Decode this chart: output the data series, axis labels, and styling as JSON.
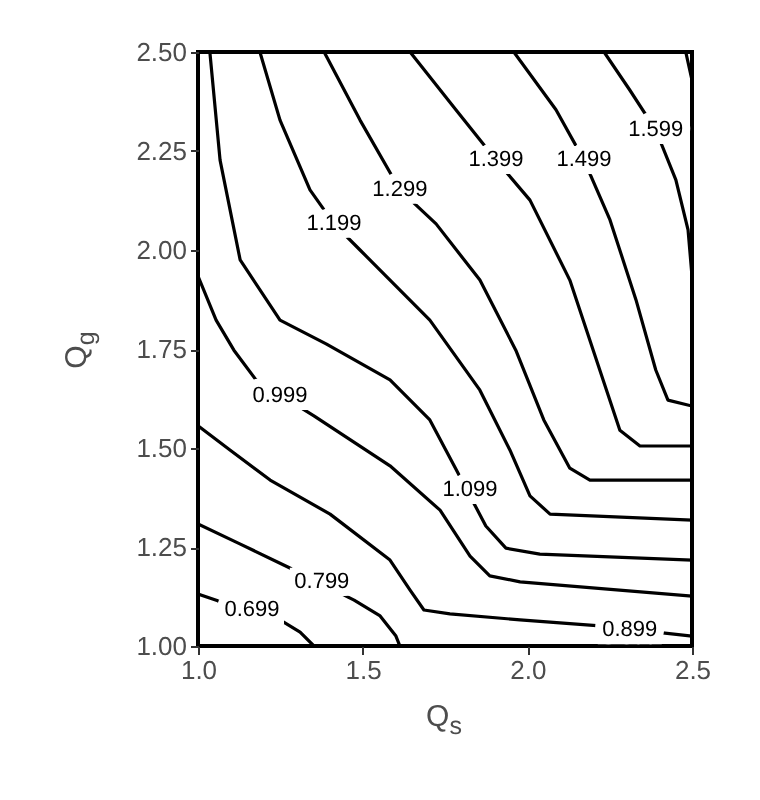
{
  "chart_data": {
    "type": "line",
    "xlabel": "Q$_{s}$",
    "ylabel": "Q$_{g}$",
    "xlim": [
      1,
      2.5
    ],
    "ylim": [
      1,
      2.5
    ],
    "xticks": [
      {
        "value": 1,
        "label": "1.0"
      },
      {
        "value": 1.5,
        "label": "1.5"
      },
      {
        "value": 2,
        "label": "2.0"
      },
      {
        "value": 2.5,
        "label": "2.5"
      }
    ],
    "yticks": [
      {
        "value": 1,
        "label": "1.00"
      },
      {
        "value": 1.25,
        "label": "1.25"
      },
      {
        "value": 1.5,
        "label": "1.50"
      },
      {
        "value": 1.75,
        "label": "1.75"
      },
      {
        "value": 2,
        "label": "2.00"
      },
      {
        "value": 2.25,
        "label": "2.25"
      },
      {
        "value": 2.5,
        "label": "2.50"
      }
    ],
    "grid": false,
    "line_style": "solid",
    "marker": "none",
    "series": [
      {
        "color": "#000000",
        "x": [
          1.0,
          1.06,
          1.249,
          1.31,
          1.352
        ],
        "values": [
          1.131,
          1.114,
          1.066,
          1.035,
          1.0
        ]
      },
      {
        "color": "#000000",
        "x": [
          1.0,
          1.127,
          1.279,
          1.474,
          1.553,
          1.601,
          1.613
        ],
        "values": [
          1.308,
          1.258,
          1.197,
          1.116,
          1.076,
          1.025,
          1.0
        ]
      },
      {
        "color": "#000000",
        "x": [
          1.0,
          1.097,
          1.219,
          1.401,
          1.583,
          1.644,
          1.686,
          1.765,
          1.978,
          2.22,
          2.5
        ],
        "values": [
          1.556,
          1.495,
          1.419,
          1.333,
          1.217,
          1.141,
          1.091,
          1.081,
          1.066,
          1.051,
          1.025
        ]
      },
      {
        "color": "#000000",
        "x": [
          1.0,
          1.055,
          1.109,
          1.176,
          1.352,
          1.583,
          1.735,
          1.826,
          1.886,
          1.978,
          2.5
        ],
        "values": [
          1.934,
          1.823,
          1.747,
          1.672,
          1.581,
          1.455,
          1.343,
          1.227,
          1.177,
          1.162,
          1.126
        ]
      },
      {
        "color": "#000000",
        "x": [
          1.036,
          1.067,
          1.128,
          1.249,
          1.389,
          1.583,
          1.704,
          1.781,
          1.874,
          1.935,
          2.038,
          2.5
        ],
        "values": [
          2.5,
          2.227,
          1.975,
          1.823,
          1.763,
          1.672,
          1.571,
          1.45,
          1.303,
          1.247,
          1.232,
          1.217
        ]
      },
      {
        "color": "#000000",
        "x": [
          1.188,
          1.249,
          1.34,
          1.413,
          1.492,
          1.704,
          1.856,
          1.947,
          2.008,
          2.069,
          2.5
        ],
        "values": [
          2.5,
          2.328,
          2.152,
          2.066,
          2.0,
          1.823,
          1.646,
          1.495,
          1.379,
          1.333,
          1.318
        ]
      },
      {
        "color": "#000000",
        "x": [
          1.383,
          1.492,
          1.613,
          1.723,
          1.856,
          1.965,
          2.05,
          2.129,
          2.19,
          2.5
        ],
        "values": [
          2.5,
          2.328,
          2.152,
          2.066,
          1.924,
          1.747,
          1.571,
          1.449,
          1.419,
          1.419
        ]
      },
      {
        "color": "#000000",
        "x": [
          1.644,
          1.783,
          1.905,
          2.008,
          2.129,
          2.22,
          2.281,
          2.342,
          2.5
        ],
        "values": [
          2.5,
          2.354,
          2.227,
          2.126,
          1.924,
          1.697,
          1.545,
          1.505,
          1.505
        ]
      },
      {
        "color": "#000000",
        "x": [
          1.959,
          2.087,
          2.172,
          2.251,
          2.33,
          2.39,
          2.427,
          2.5
        ],
        "values": [
          2.5,
          2.354,
          2.227,
          2.076,
          1.874,
          1.697,
          1.621,
          1.606
        ]
      },
      {
        "color": "#000000",
        "x": [
          2.233,
          2.311,
          2.39,
          2.451,
          2.488,
          2.5
        ],
        "values": [
          2.5,
          2.404,
          2.303,
          2.177,
          2.051,
          1.934
        ]
      },
      {
        "color": "#000000",
        "x": [
          2.481,
          2.5
        ],
        "values": [
          2.5,
          2.429
        ]
      }
    ],
    "annotations": [
      {
        "text": "0.699",
        "x": 1.164,
        "y": 1.091
      },
      {
        "text": "0.799",
        "x": 1.376,
        "y": 1.162
      },
      {
        "text": "0.899",
        "x": 2.311,
        "y": 1.04
      },
      {
        "text": "0.999",
        "x": 1.249,
        "y": 1.631
      },
      {
        "text": "1.099",
        "x": 1.826,
        "y": 1.394
      },
      {
        "text": "1.199",
        "x": 1.413,
        "y": 2.066
      },
      {
        "text": "1.299",
        "x": 1.613,
        "y": 2.152
      },
      {
        "text": "1.399",
        "x": 1.905,
        "y": 2.227
      },
      {
        "text": "1.499",
        "x": 2.172,
        "y": 2.227
      },
      {
        "text": "1.599",
        "x": 2.39,
        "y": 2.303
      }
    ]
  }
}
